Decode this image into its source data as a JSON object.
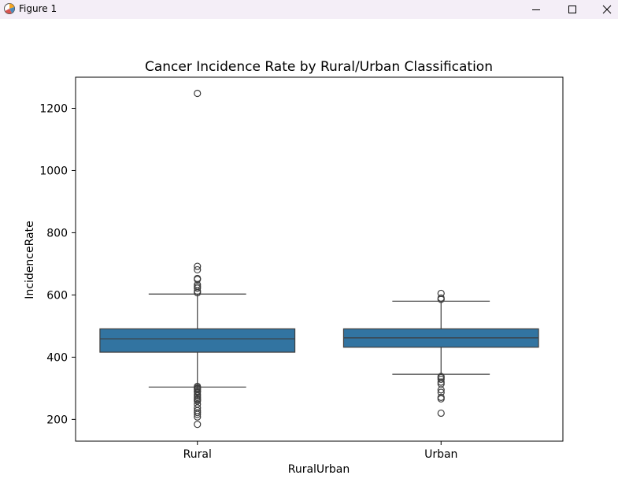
{
  "window": {
    "title": "Figure 1",
    "icons": {
      "app": "matplotlib-figure-icon",
      "minimize": "minimize-icon",
      "maximize": "maximize-icon",
      "close": "close-icon"
    }
  },
  "chart_data": {
    "type": "box",
    "title": "Cancer Incidence Rate by Rural/Urban Classification",
    "xlabel": "RuralUrban",
    "ylabel": "IncidenceRate",
    "categories": [
      "Rural",
      "Urban"
    ],
    "ylim": [
      130,
      1300
    ],
    "yticks": [
      200,
      400,
      600,
      800,
      1000,
      1200
    ],
    "grid": false,
    "legend": "none",
    "box_color": "#3274a1",
    "line_color": "#3d3d3d",
    "boxes": [
      {
        "category": "Rural",
        "whisker_low": 304,
        "q1": 416,
        "median": 459,
        "q3": 491,
        "whisker_high": 603,
        "outliers": [
          1248,
          692,
          681,
          653,
          650,
          633,
          627,
          622,
          612,
          607,
          306,
          302,
          299,
          296,
          291,
          288,
          281,
          276,
          271,
          266,
          263,
          259,
          249,
          237,
          228,
          222,
          216,
          208,
          184
        ]
      },
      {
        "category": "Urban",
        "whisker_low": 345,
        "q1": 432,
        "median": 462,
        "q3": 491,
        "whisker_high": 580,
        "outliers": [
          605,
          590,
          586,
          338,
          334,
          329,
          320,
          314,
          295,
          287,
          271,
          266,
          220
        ]
      }
    ]
  }
}
